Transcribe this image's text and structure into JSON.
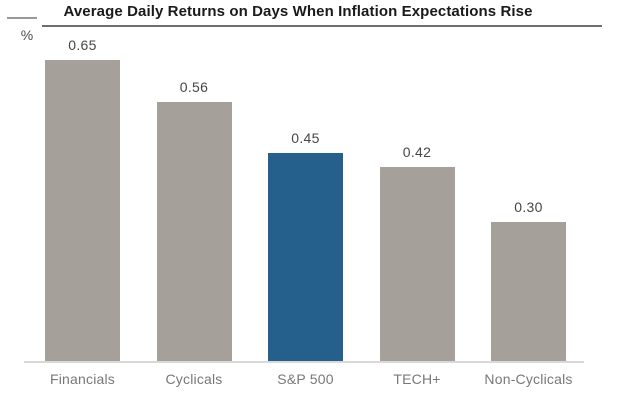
{
  "chart_data": {
    "type": "bar",
    "title": "Average Daily Returns on Days When Inflation Expectations Rise",
    "unit_label": "%",
    "categories": [
      "Financials",
      "Cyclicals",
      "S&P 500",
      "TECH+",
      "Non-Cyclicals"
    ],
    "values": [
      0.65,
      0.56,
      0.45,
      0.42,
      0.3
    ],
    "value_labels": [
      "0.65",
      "0.56",
      "0.45",
      "0.42",
      "0.30"
    ],
    "highlight_index": 2,
    "ylim": [
      0,
      0.7
    ],
    "grid": "off",
    "legend": "none",
    "value_labels_position": "above-bars",
    "colors": {
      "bar": "#a6a09b",
      "highlight": "#255f8c",
      "axis_line": "#d9d9d9",
      "title_underline": "#6e6e6e",
      "yaxis_header_line": "#999999",
      "title_text": "#1a1a1a",
      "value_text": "#464646",
      "category_text": "#787878"
    }
  }
}
